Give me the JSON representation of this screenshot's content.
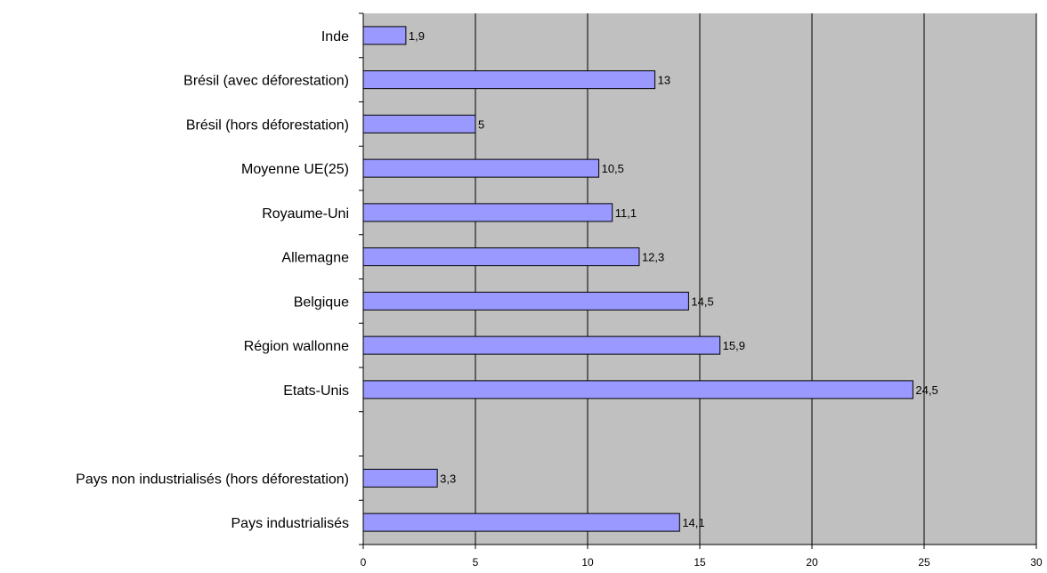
{
  "chart_data": {
    "type": "bar",
    "orientation": "horizontal",
    "categories": [
      "Inde",
      "Brésil (avec déforestation)",
      "Brésil (hors déforestation)",
      "Moyenne UE(25)",
      "Royaume-Uni",
      "Allemagne",
      "Belgique",
      "Région wallonne",
      "Etats-Unis",
      "",
      "Pays non industrialisés (hors déforestation)",
      "Pays industrialisés"
    ],
    "values": [
      1.9,
      13,
      5,
      10.5,
      11.1,
      12.3,
      14.5,
      15.9,
      24.5,
      null,
      3.3,
      14.1
    ],
    "value_labels": [
      "1,9",
      "13",
      "5",
      "10,5",
      "11,1",
      "12,3",
      "14,5",
      "15,9",
      "24,5",
      "",
      "3,3",
      "14,1"
    ],
    "xlim": [
      0,
      30
    ],
    "xticks": [
      0,
      5,
      10,
      15,
      20,
      25,
      30
    ],
    "xtick_labels": [
      "0",
      "5",
      "10",
      "15",
      "20",
      "25",
      "30"
    ],
    "title": "",
    "xlabel": "",
    "ylabel": "",
    "grid": "vertical",
    "legend": "none",
    "colors": {
      "bar_fill": "#9999ff",
      "bar_stroke": "#000000",
      "plot_background": "#c0c0c0",
      "gridline": "#000000"
    }
  }
}
